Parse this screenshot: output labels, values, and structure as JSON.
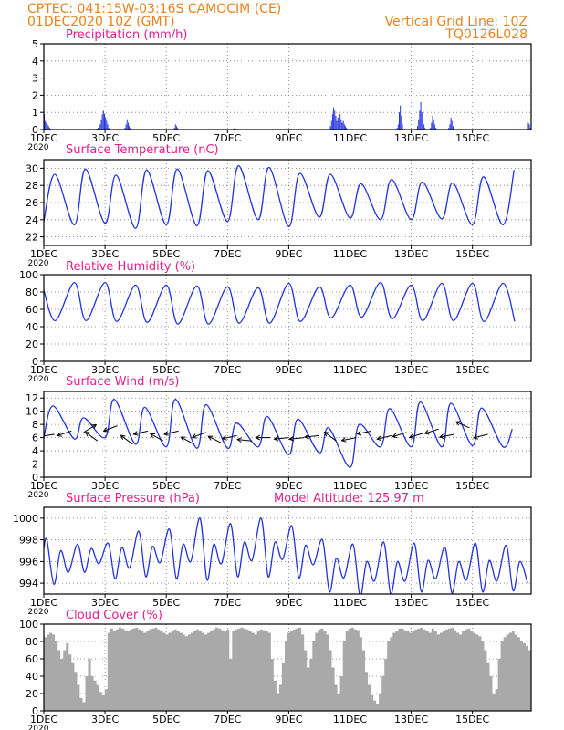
{
  "header": {
    "line1": "CPTEC:   041:15W-03:16S   CAMOCIM (CE)",
    "line2": "01DEC2020 10Z (GMT)",
    "grid_note": "Vertical Grid Line: 10Z",
    "model_code": "TQ0126L028"
  },
  "colors": {
    "header": "#e8821e",
    "panel_title": "#e0208c",
    "line": "#2233dd",
    "bar": "#2233dd",
    "cloud": "#a9a9a9",
    "arrow": "#000000"
  },
  "x_axis": {
    "days": [
      1,
      16.917
    ],
    "ticks": [
      1,
      3,
      5,
      7,
      9,
      11,
      13,
      15
    ],
    "tick_labels": [
      "1DEC",
      "3DEC",
      "5DEC",
      "7DEC",
      "9DEC",
      "11DEC",
      "13DEC",
      "15DEC"
    ],
    "year_label": "2020"
  },
  "chart_data": [
    {
      "type": "bar",
      "title": "Precipitation (mm/h)",
      "ylim": [
        0,
        5
      ],
      "yticks": [
        0,
        1,
        2,
        3,
        4,
        5
      ],
      "grid": true,
      "step_hours": 1,
      "values": [
        0.9,
        0.5,
        0.4,
        0.3,
        0.2,
        0.1,
        0.05,
        0,
        0,
        0,
        0,
        0,
        0,
        0,
        0,
        0,
        0,
        0,
        0,
        0,
        0,
        0,
        0,
        0,
        0,
        0,
        0,
        0,
        0,
        0,
        0,
        0,
        0,
        0,
        0,
        0,
        0,
        0,
        0,
        0,
        0,
        0,
        0,
        0,
        0,
        0,
        0,
        0,
        0,
        0.05,
        0.1,
        0.2,
        0.3,
        0.6,
        0.9,
        1.1,
        0.9,
        0.7,
        0.5,
        0.3,
        0.1,
        0,
        0,
        0,
        0,
        0,
        0,
        0,
        0,
        0,
        0,
        0,
        0,
        0,
        0,
        0.1,
        0.3,
        0.6,
        0.4,
        0.2,
        0.1,
        0,
        0,
        0,
        0,
        0,
        0,
        0,
        0,
        0,
        0,
        0,
        0,
        0,
        0,
        0,
        0,
        0,
        0,
        0,
        0,
        0,
        0,
        0,
        0,
        0,
        0,
        0,
        0,
        0,
        0,
        0,
        0,
        0,
        0,
        0,
        0,
        0,
        0,
        0,
        0,
        0.1,
        0.3,
        0.2,
        0.1,
        0,
        0,
        0,
        0,
        0,
        0,
        0,
        0,
        0,
        0,
        0,
        0,
        0,
        0,
        0,
        0,
        0,
        0,
        0,
        0,
        0,
        0,
        0,
        0,
        0,
        0,
        0,
        0,
        0,
        0,
        0,
        0,
        0,
        0,
        0,
        0,
        0,
        0,
        0,
        0,
        0,
        0,
        0,
        0,
        0,
        0,
        0,
        0,
        0,
        0,
        0,
        0.05,
        0.1,
        0.05,
        0,
        0,
        0,
        0,
        0,
        0,
        0,
        0,
        0,
        0,
        0,
        0,
        0,
        0,
        0,
        0,
        0,
        0,
        0,
        0,
        0,
        0,
        0,
        0,
        0,
        0,
        0,
        0,
        0,
        0,
        0,
        0,
        0,
        0,
        0,
        0,
        0,
        0,
        0,
        0,
        0,
        0,
        0,
        0,
        0,
        0,
        0,
        0,
        0,
        0,
        0,
        0,
        0,
        0,
        0,
        0,
        0,
        0,
        0,
        0,
        0,
        0,
        0,
        0,
        0,
        0,
        0,
        0,
        0,
        0,
        0,
        0,
        0,
        0,
        0,
        0,
        0,
        0,
        0,
        0,
        0,
        0,
        0,
        0,
        0,
        0,
        0,
        0.2,
        0.5,
        0.9,
        1.3,
        1.1,
        0.8,
        0.5,
        0.7,
        1.2,
        0.9,
        0.6,
        0.4,
        0.5,
        0.3,
        0.2,
        0.1,
        0,
        0,
        0,
        0,
        0,
        0,
        0,
        0,
        0,
        0,
        0,
        0,
        0,
        0,
        0,
        0,
        0,
        0,
        0,
        0,
        0,
        0,
        0,
        0,
        0,
        0,
        0,
        0,
        0,
        0,
        0,
        0,
        0,
        0,
        0,
        0,
        0,
        0,
        0,
        0,
        0,
        0,
        0,
        0,
        0,
        0,
        0.1,
        0.3,
        1.0,
        1.4,
        0.8,
        0.3,
        0,
        0,
        0,
        0,
        0,
        0,
        0,
        0,
        0,
        0,
        0,
        0,
        0.05,
        0.2,
        0.6,
        1.1,
        1.6,
        1.0,
        0.6,
        0.3,
        0.1,
        0,
        0,
        0,
        0,
        0.1,
        0.4,
        0.8,
        0.6,
        0.3,
        0.1,
        0,
        0,
        0,
        0,
        0,
        0,
        0,
        0,
        0,
        0,
        0,
        0.1,
        0.3,
        0.7,
        0.5,
        0.2,
        0,
        0,
        0,
        0,
        0,
        0,
        0,
        0,
        0,
        0,
        0,
        0,
        0,
        0,
        0,
        0,
        0,
        0,
        0,
        0,
        0,
        0,
        0,
        0,
        0,
        0,
        0,
        0,
        0,
        0,
        0,
        0,
        0,
        0,
        0,
        0,
        0,
        0,
        0,
        0,
        0,
        0,
        0,
        0,
        0,
        0,
        0,
        0,
        0,
        0,
        0,
        0,
        0,
        0,
        0,
        0,
        0,
        0,
        0,
        0,
        0,
        0,
        0,
        0,
        0,
        0,
        0,
        0,
        0,
        0.4,
        0.3,
        0.1
      ]
    },
    {
      "type": "line",
      "title": "Surface Temperature (nC)",
      "ylim": [
        21,
        31
      ],
      "yticks": [
        22,
        24,
        26,
        28,
        30
      ],
      "grid": true,
      "min_day_offset": 0.0,
      "max_day_offset": 0.36,
      "start_value": 23.8,
      "daily_min": [
        23.0,
        23.4,
        23.6,
        23.0,
        23.4,
        23.3,
        23.8,
        24.0,
        23.2,
        24.3,
        24.2,
        24.0,
        24.0,
        24.1,
        23.4,
        23.4,
        23.5
      ],
      "daily_max": [
        29.3,
        29.9,
        29.2,
        29.8,
        29.9,
        29.7,
        30.3,
        30.1,
        29.4,
        29.3,
        28.2,
        28.7,
        28.4,
        28.3,
        29.0,
        29.8,
        29.3
      ]
    },
    {
      "type": "line",
      "title": "Relative Humidity (%)",
      "ylim": [
        0,
        100
      ],
      "yticks": [
        0,
        20,
        40,
        60,
        80,
        100
      ],
      "grid": true,
      "max_day_offset": 0.0,
      "min_day_offset": 0.38,
      "start_value": 82,
      "daily_max": [
        90,
        91,
        91,
        88,
        88,
        87,
        86,
        85,
        90,
        86,
        88,
        91,
        88,
        90,
        90,
        90,
        70
      ],
      "daily_min": [
        47,
        47,
        46,
        45,
        43,
        43,
        44,
        44,
        46,
        50,
        51,
        49,
        47,
        47,
        46,
        46,
        46
      ]
    },
    {
      "type": "line",
      "title": "Surface Wind (m/s)",
      "ylim": [
        0,
        13
      ],
      "yticks": [
        0,
        2,
        4,
        6,
        8,
        10,
        12
      ],
      "grid": true,
      "min_day_offset": 0.0,
      "max_day_offset": 0.3,
      "start_value": 6.0,
      "daily_min": [
        5.0,
        5.8,
        6.0,
        5.0,
        4.6,
        4.4,
        4.4,
        4.6,
        3.4,
        3.7,
        1.5,
        4.6,
        4.6,
        4.6,
        4.8,
        4.6,
        5.0
      ],
      "daily_max": [
        10.8,
        9.0,
        11.8,
        10.6,
        11.8,
        11.0,
        8.2,
        9.2,
        8.8,
        7.5,
        8.0,
        10.4,
        11.4,
        11.2,
        10.5,
        7.3,
        7.0
      ],
      "wind_vectors": [
        {
          "day": 1.35,
          "speed": 6.5,
          "dx": 1.0,
          "dy": -0.15
        },
        {
          "day": 1.9,
          "speed": 7.0,
          "dx": 0.9,
          "dy": -0.3
        },
        {
          "day": 2.3,
          "speed": 6.8,
          "dx": -1.0,
          "dy": 0.6
        },
        {
          "day": 2.75,
          "speed": 5.5,
          "dx": 0.8,
          "dy": 0.6
        },
        {
          "day": 3.4,
          "speed": 7.8,
          "dx": 0.9,
          "dy": -0.35
        },
        {
          "day": 3.9,
          "speed": 5.0,
          "dx": 0.8,
          "dy": 0.6
        },
        {
          "day": 4.4,
          "speed": 7.0,
          "dx": 0.9,
          "dy": -0.2
        },
        {
          "day": 4.9,
          "speed": 5.5,
          "dx": 0.9,
          "dy": 0.5
        },
        {
          "day": 5.4,
          "speed": 7.0,
          "dx": 0.9,
          "dy": -0.2
        },
        {
          "day": 5.9,
          "speed": 5.0,
          "dx": 0.9,
          "dy": 0.5
        },
        {
          "day": 6.3,
          "speed": 6.8,
          "dx": 0.95,
          "dy": -0.35
        },
        {
          "day": 6.8,
          "speed": 5.2,
          "dx": 0.9,
          "dy": 0.45
        },
        {
          "day": 7.3,
          "speed": 6.3,
          "dx": 0.95,
          "dy": -0.2
        },
        {
          "day": 7.8,
          "speed": 5.5,
          "dx": 1.0,
          "dy": 0.1
        },
        {
          "day": 8.4,
          "speed": 6.0,
          "dx": 1.0,
          "dy": 0.0
        },
        {
          "day": 9.0,
          "speed": 6.0,
          "dx": 1.0,
          "dy": -0.1
        },
        {
          "day": 9.5,
          "speed": 6.0,
          "dx": 1.0,
          "dy": -0.1
        },
        {
          "day": 10.0,
          "speed": 6.3,
          "dx": 1.0,
          "dy": -0.1
        },
        {
          "day": 10.55,
          "speed": 5.5,
          "dx": 0.8,
          "dy": 0.6
        },
        {
          "day": 11.2,
          "speed": 6.0,
          "dx": 1.0,
          "dy": -0.2
        },
        {
          "day": 11.7,
          "speed": 7.0,
          "dx": 1.0,
          "dy": -0.2
        },
        {
          "day": 12.35,
          "speed": 6.3,
          "dx": 1.0,
          "dy": -0.25
        },
        {
          "day": 12.85,
          "speed": 6.8,
          "dx": 0.95,
          "dy": -0.3
        },
        {
          "day": 13.4,
          "speed": 6.7,
          "dx": 0.95,
          "dy": -0.3
        },
        {
          "day": 13.9,
          "speed": 7.3,
          "dx": 0.95,
          "dy": -0.3
        },
        {
          "day": 14.4,
          "speed": 6.5,
          "dx": 1.0,
          "dy": -0.2
        },
        {
          "day": 14.9,
          "speed": 7.5,
          "dx": 0.9,
          "dy": 0.4
        },
        {
          "day": 15.5,
          "speed": 6.5,
          "dx": 1.0,
          "dy": -0.25
        }
      ]
    },
    {
      "type": "line",
      "title": "Surface Pressure (hPa)",
      "annotation": "Model Altitude: 125.97 m",
      "ylim": [
        993,
        1001
      ],
      "yticks": [
        994,
        996,
        998,
        1000
      ],
      "grid": true,
      "semidiurnal": true,
      "start_value": 997.2,
      "peaks_major": [
        998.0,
        997.6,
        997.7,
        998.8,
        999.0,
        1000.0,
        999.5,
        1000.0,
        999.3,
        998.0,
        997.6,
        997.8,
        997.7,
        997.3,
        997.7,
        997.5
      ],
      "peaks_minor": [
        997.0,
        997.2,
        997.3,
        997.4,
        997.6,
        997.6,
        997.8,
        997.8,
        997.5,
        996.3,
        996.0,
        996.0,
        996.1,
        996.0,
        996.1,
        996.0
      ],
      "troughs_morning": [
        995.0,
        995.8,
        995.4,
        995.9,
        996.0,
        995.8,
        996.1,
        996.2,
        995.7,
        994.5,
        994.2,
        994.2,
        994.4,
        994.3,
        994.2,
        994.0
      ],
      "troughs_afternoon": [
        993.9,
        995.0,
        994.4,
        994.6,
        994.4,
        994.3,
        994.6,
        994.6,
        994.5,
        993.2,
        992.8,
        993.0,
        993.2,
        993.1,
        993.2,
        993.3
      ]
    },
    {
      "type": "area",
      "title": "Cloud Cover (%)",
      "ylim": [
        0,
        100
      ],
      "yticks": [
        0,
        20,
        40,
        60,
        80,
        100
      ],
      "grid": true,
      "step_hours": 2,
      "values": [
        85,
        88,
        90,
        88,
        80,
        70,
        60,
        70,
        78,
        65,
        55,
        45,
        30,
        15,
        10,
        40,
        60,
        40,
        35,
        30,
        22,
        18,
        25,
        90,
        95,
        92,
        94,
        96,
        95,
        93,
        92,
        94,
        95,
        96,
        94,
        92,
        90,
        92,
        94,
        95,
        96,
        94,
        92,
        90,
        88,
        90,
        92,
        94,
        92,
        90,
        88,
        86,
        88,
        90,
        92,
        94,
        92,
        90,
        88,
        90,
        92,
        94,
        96,
        95,
        93,
        92,
        94,
        60,
        92,
        94,
        95,
        96,
        95,
        94,
        92,
        90,
        88,
        92,
        94,
        93,
        92,
        90,
        60,
        35,
        20,
        30,
        55,
        80,
        90,
        92,
        94,
        95,
        96,
        88,
        70,
        50,
        60,
        80,
        90,
        94,
        95,
        92,
        88,
        70,
        50,
        30,
        20,
        40,
        80,
        92,
        95,
        96,
        94,
        93,
        85,
        70,
        45,
        30,
        18,
        12,
        8,
        20,
        40,
        60,
        80,
        85,
        90,
        92,
        95,
        95,
        93,
        92,
        90,
        92,
        94,
        95,
        96,
        94,
        92,
        90,
        95,
        92,
        88,
        90,
        92,
        94,
        95,
        96,
        93,
        90,
        88,
        92,
        94,
        95,
        92,
        90,
        88,
        86,
        80,
        70,
        55,
        40,
        20,
        25,
        60,
        80,
        85,
        88,
        90,
        92,
        88,
        85,
        80,
        78,
        75,
        70
      ]
    }
  ]
}
